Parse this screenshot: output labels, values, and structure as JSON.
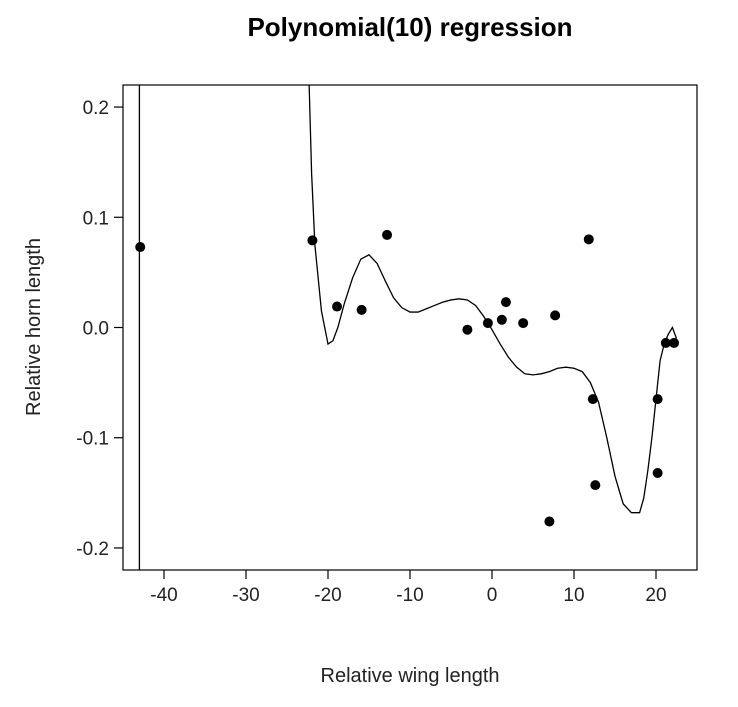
{
  "chart_data": {
    "type": "scatter",
    "title": "Polynomial(10) regression",
    "xlabel": "Relative wing length",
    "ylabel": "Relative horn length",
    "xlim": [
      -45,
      25
    ],
    "ylim": [
      -0.22,
      0.22
    ],
    "xticks": [
      -40,
      -30,
      -20,
      -10,
      0,
      10,
      20
    ],
    "xtick_labels": [
      "-40",
      "-30",
      "-20",
      "-10",
      "0",
      "10",
      "20"
    ],
    "yticks": [
      -0.2,
      -0.1,
      0.0,
      0.1,
      0.2
    ],
    "ytick_labels": [
      "-0.2",
      "-0.1",
      "0.0",
      "0.1",
      "0.2"
    ],
    "grid": false,
    "points": {
      "x": [
        -42.9,
        -21.9,
        -18.9,
        -15.9,
        -12.8,
        -3.0,
        -0.5,
        1.2,
        1.7,
        3.8,
        7.7,
        11.8,
        12.3,
        12.6,
        7.0,
        20.2,
        20.2,
        21.2,
        22.2
      ],
      "y": [
        0.073,
        0.079,
        0.019,
        0.016,
        0.084,
        -0.002,
        0.004,
        0.007,
        0.023,
        0.004,
        0.011,
        0.08,
        -0.065,
        -0.143,
        -0.176,
        -0.065,
        -0.132,
        -0.014,
        -0.014
      ]
    },
    "fit_curve": {
      "name": "Polynomial(10) fit",
      "x": [
        -43.0,
        -43.0,
        null,
        -22.3,
        -22.0,
        -21.6,
        -21.2,
        -20.8,
        -20.4,
        -20.0,
        -19.4,
        -18.8,
        -18.0,
        -17.0,
        -16.0,
        -15.0,
        -14.0,
        -13.0,
        -12.0,
        -11.0,
        -10.0,
        -9.0,
        -8.0,
        -7.0,
        -6.0,
        -5.0,
        -4.0,
        -3.0,
        -2.0,
        -1.0,
        0.0,
        1.0,
        2.0,
        3.0,
        4.0,
        5.0,
        6.0,
        7.0,
        8.0,
        9.0,
        10.0,
        11.0,
        12.0,
        13.0,
        14.0,
        15.0,
        16.0,
        17.0,
        18.0,
        18.5,
        19.0,
        19.5,
        20.0,
        20.5,
        21.0,
        21.5,
        22.0,
        22.5
      ],
      "y": [
        -0.22,
        0.22,
        null,
        0.22,
        0.14,
        0.075,
        0.045,
        0.015,
        0.0,
        -0.015,
        -0.012,
        0.0,
        0.022,
        0.045,
        0.062,
        0.066,
        0.058,
        0.042,
        0.027,
        0.018,
        0.014,
        0.014,
        0.017,
        0.02,
        0.023,
        0.025,
        0.026,
        0.025,
        0.02,
        0.01,
        -0.002,
        -0.015,
        -0.027,
        -0.036,
        -0.042,
        -0.043,
        -0.042,
        -0.04,
        -0.037,
        -0.036,
        -0.037,
        -0.04,
        -0.05,
        -0.068,
        -0.1,
        -0.135,
        -0.16,
        -0.168,
        -0.168,
        -0.155,
        -0.13,
        -0.1,
        -0.065,
        -0.03,
        -0.015,
        -0.006,
        0.0,
        -0.01
      ]
    }
  }
}
